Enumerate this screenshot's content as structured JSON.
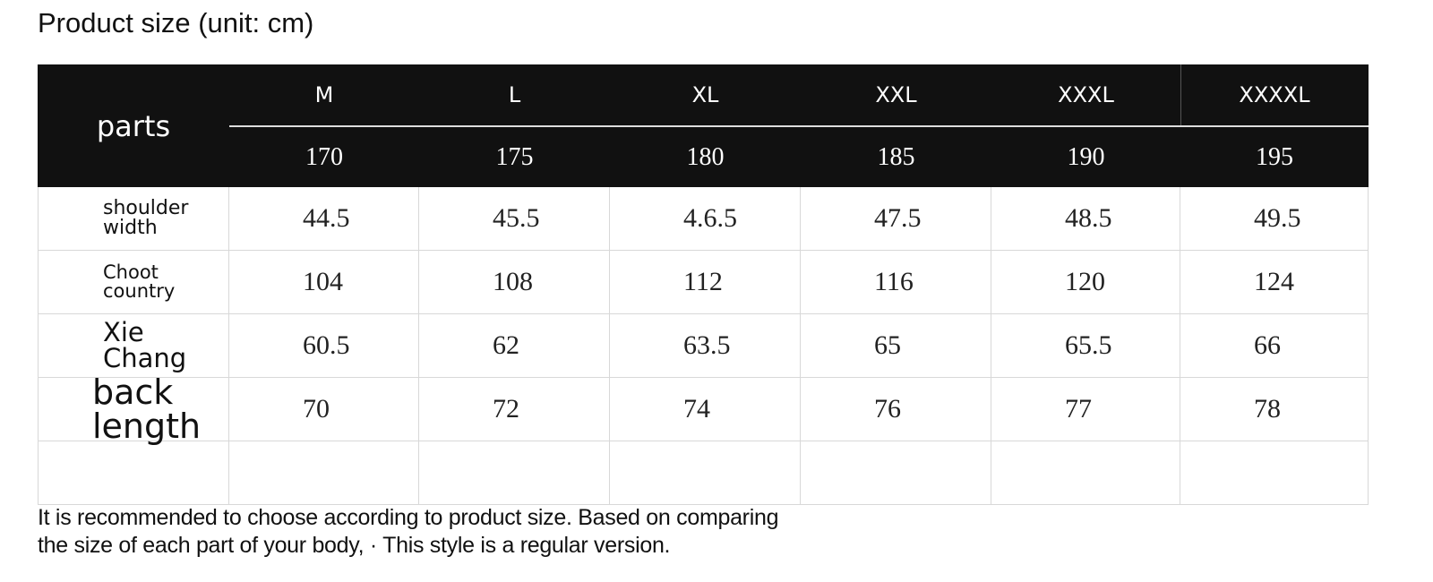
{
  "header": {
    "title": "Product size (unit: cm)"
  },
  "table": {
    "corner": "parts",
    "sizes": [
      "M",
      "L",
      "XL",
      "XXL",
      "XXXL",
      "XXXXL"
    ],
    "heights": [
      "170",
      "175",
      "180",
      "185",
      "190",
      "195"
    ],
    "rows": [
      {
        "label": "shoulder width",
        "values": [
          "44.5",
          "45.5",
          "4.6.5",
          "47.5",
          "48.5",
          "49.5"
        ]
      },
      {
        "label": "Choot country",
        "values": [
          "104",
          "108",
          "112",
          "116",
          "120",
          "124"
        ]
      },
      {
        "label": "Xie Chang",
        "values": [
          "60.5",
          "62",
          "63.5",
          "65",
          "65.5",
          "66"
        ]
      },
      {
        "label": "back length",
        "values": [
          "70",
          "72",
          "74",
          "76",
          "77",
          "78"
        ]
      }
    ]
  },
  "note": {
    "lines": [
      "It is recommended to choose according to product size. Based on comparing",
      "the size of each part of your body, · This style is a regular version."
    ]
  }
}
